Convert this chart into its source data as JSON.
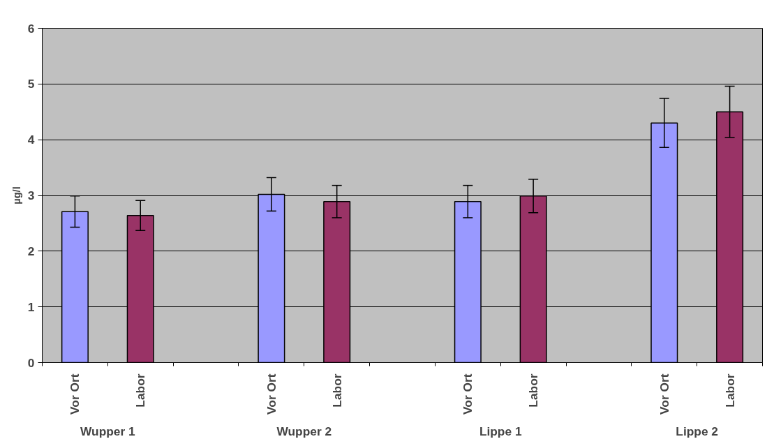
{
  "chart_data": {
    "type": "bar",
    "ylabel": "µg/l",
    "categories": [
      "Vor Ort",
      "Labor",
      null,
      "Vor Ort",
      "Labor",
      null,
      "Vor Ort",
      "Labor",
      null,
      "Vor Ort",
      "Labor"
    ],
    "values": [
      2.71,
      2.64,
      null,
      3.02,
      2.89,
      null,
      2.89,
      2.99,
      null,
      4.3,
      4.5
    ],
    "colors": [
      "#9999ff",
      "#993366",
      null,
      "#9999ff",
      "#993366",
      null,
      "#9999ff",
      "#993366",
      null,
      "#9999ff",
      "#993366"
    ],
    "errors": [
      0.28,
      0.27,
      null,
      0.3,
      0.29,
      null,
      0.29,
      0.3,
      null,
      0.44,
      0.46
    ],
    "ylim": [
      0,
      6
    ],
    "yticks": [
      0,
      1,
      2,
      3,
      4,
      5,
      6
    ],
    "grid": "y",
    "annotations": [
      "Wupper 1",
      "Wupper 2",
      "Lippe 1",
      "Lippe 2"
    ]
  }
}
